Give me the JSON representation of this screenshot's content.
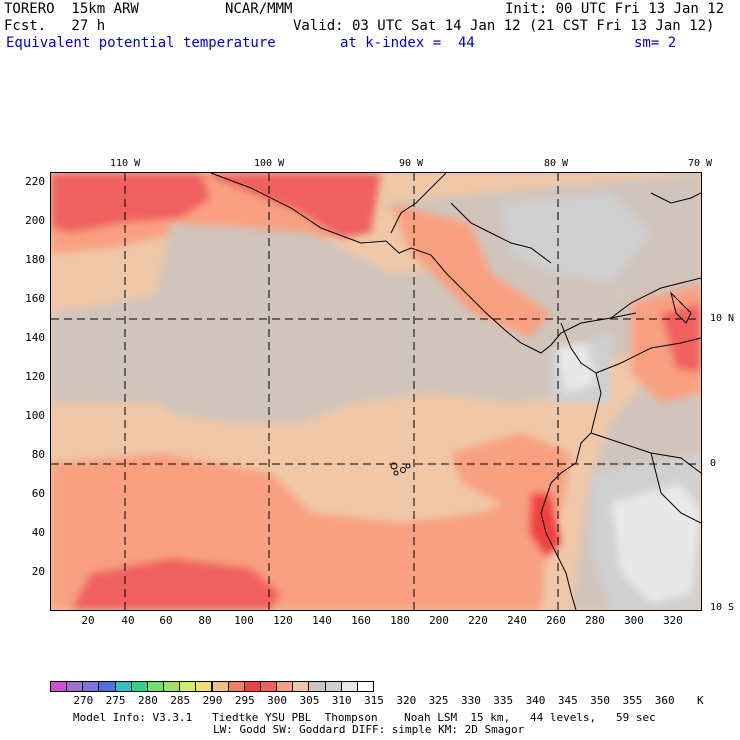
{
  "header": {
    "model": "TORERO  15km ARW",
    "center": "NCAR/MMM",
    "init": "Init: 00 UTC Fri 13 Jan 12",
    "fcst": "Fcst.   27 h",
    "valid": "Valid: 03 UTC Sat 14 Jan 12 (21 CST Fri 13 Jan 12)",
    "field": "Equivalent potential temperature",
    "level": "at k-index =  44",
    "smooth": "sm= 2"
  },
  "map": {
    "top_lon_labels": [
      "110 W",
      "100 W",
      "90 W",
      "80 W",
      "70 W"
    ],
    "right_lat_labels": [
      "10 N",
      "0",
      "10 S"
    ],
    "y_grid_labels": [
      "220",
      "200",
      "180",
      "160",
      "140",
      "120",
      "100",
      "80",
      "60",
      "40",
      "20"
    ],
    "x_grid_labels": [
      "20",
      "40",
      "60",
      "80",
      "100",
      "120",
      "140",
      "160",
      "180",
      "200",
      "220",
      "240",
      "260",
      "280",
      "300",
      "320"
    ]
  },
  "colorbar": {
    "unit": "K",
    "labels": [
      "270",
      "275",
      "280",
      "285",
      "290",
      "295",
      "300",
      "305",
      "310",
      "315",
      "320",
      "325",
      "330",
      "335",
      "340",
      "345",
      "350",
      "355",
      "360"
    ],
    "colors": [
      "#d050d0",
      "#a070d0",
      "#8070e0",
      "#5070e0",
      "#30c0c0",
      "#30d090",
      "#70e070",
      "#a0e060",
      "#d0f060",
      "#f0e070",
      "#f0c080",
      "#f08060",
      "#f04040",
      "#f06060",
      "#f8a080",
      "#f0c8a8",
      "#d0c4bc",
      "#d0d0d0",
      "#e8e8e8",
      "#ffffff"
    ]
  },
  "footer": {
    "line1": "Model Info: V3.3.1   Tiedtke YSU PBL  Thompson    Noah LSM  15 km,   44 levels,   59 sec",
    "line2": "LW: Godd SW: Goddard DIFF: simple KM: 2D Smagor"
  }
}
